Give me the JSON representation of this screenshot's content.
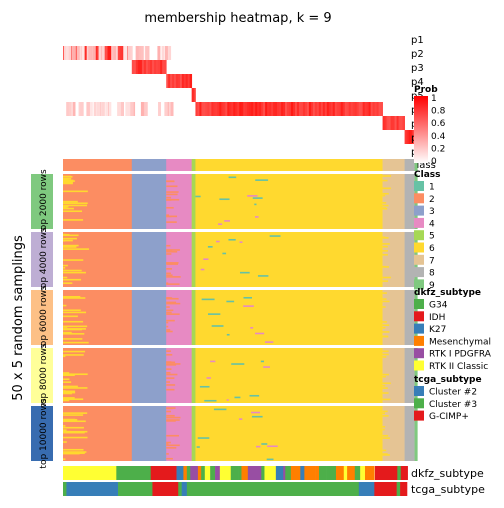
{
  "chart_data": {
    "type": "heatmap",
    "title": "membership heatmap, k = 9",
    "side_label": "50 x 5 random samplings",
    "prob_rows": [
      "p1",
      "p2",
      "p3",
      "p4",
      "p5",
      "p6",
      "p7",
      "p8",
      "p9"
    ],
    "class_row_label": "class",
    "prob_legend": {
      "title": "Prob",
      "ticks": [
        "1",
        "0.8",
        "0.6",
        "0.4",
        "0.2",
        "0"
      ]
    },
    "block_labels": [
      "top 2000 rows",
      "top 4000 rows",
      "top 6000 rows",
      "top 8000 rows",
      "top 10000 rows"
    ],
    "block_colors": [
      "#7FC97F",
      "#BEAED4",
      "#FDC086",
      "#FFFF99",
      "#386CB0"
    ],
    "class_legend": {
      "title": "Class",
      "items": [
        {
          "label": "1",
          "color": "#66C2A5"
        },
        {
          "label": "2",
          "color": "#FC8D62"
        },
        {
          "label": "3",
          "color": "#8DA0CB"
        },
        {
          "label": "4",
          "color": "#E78AC3"
        },
        {
          "label": "5",
          "color": "#A6D854"
        },
        {
          "label": "6",
          "color": "#FFD92F"
        },
        {
          "label": "7",
          "color": "#E5C494"
        },
        {
          "label": "8",
          "color": "#B3B3B3"
        },
        {
          "label": "9",
          "color": "#7FC97F"
        }
      ]
    },
    "dkfz_legend": {
      "title": "dkfz_subtype",
      "items": [
        {
          "label": "G34",
          "color": "#4DAF4A"
        },
        {
          "label": "IDH",
          "color": "#E41A1C"
        },
        {
          "label": "K27",
          "color": "#377EB8"
        },
        {
          "label": "Mesenchymal",
          "color": "#FF7F00"
        },
        {
          "label": "RTK I PDGFRA",
          "color": "#984EA3"
        },
        {
          "label": "RTK II Classic",
          "color": "#FFFF33"
        }
      ]
    },
    "tcga_legend": {
      "title": "tcga_subtype",
      "items": [
        {
          "label": "Cluster #2",
          "color": "#377EB8"
        },
        {
          "label": "Cluster #3",
          "color": "#4DAF4A"
        },
        {
          "label": "G-CIMP+",
          "color": "#E41A1C"
        }
      ]
    },
    "annotation_row_labels": [
      "dkfz_subtype",
      "tcga_subtype"
    ],
    "class_segments": [
      {
        "class": "2",
        "fraction": 0.2
      },
      {
        "class": "3",
        "fraction": 0.1
      },
      {
        "class": "4",
        "fraction": 0.074
      },
      {
        "class": "5",
        "fraction": 0.011
      },
      {
        "class": "6",
        "fraction": 0.544
      },
      {
        "class": "7",
        "fraction": 0.064
      },
      {
        "class": "8",
        "fraction": 0.029
      },
      {
        "class": "9",
        "fraction": 0.008
      }
    ]
  }
}
